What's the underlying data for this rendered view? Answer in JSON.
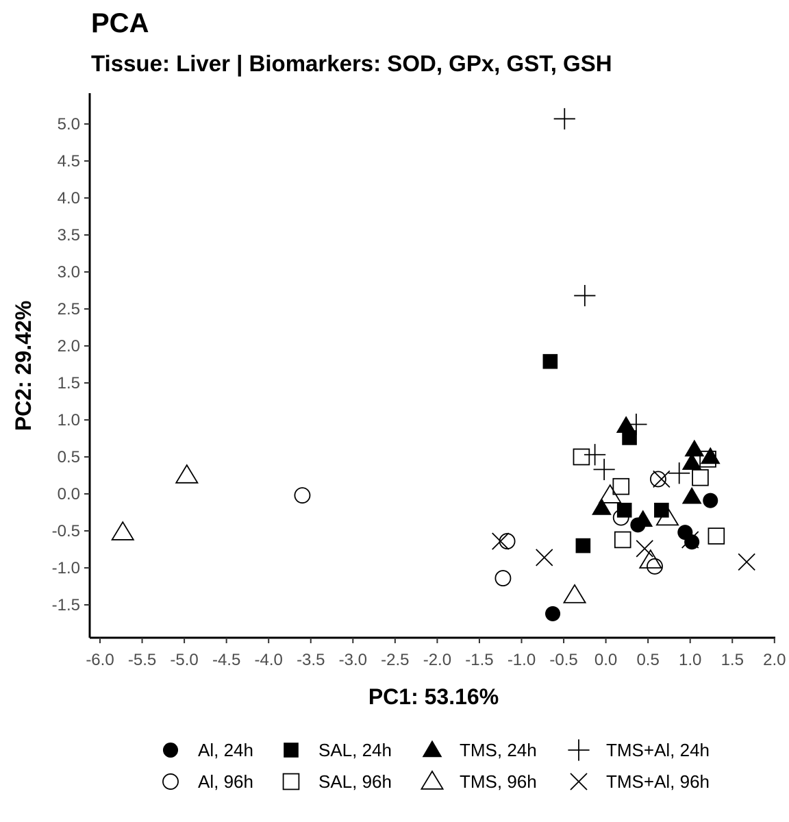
{
  "chart_data": {
    "type": "scatter",
    "title": "PCA",
    "subtitle": "Tissue: Liver | Biomarkers: SOD, GPx, GST, GSH",
    "xlabel": "PC1: 53.16%",
    "ylabel": "PC2: 29.42%",
    "xlim": [
      -6.1,
      2.0
    ],
    "ylim": [
      -1.9,
      5.4
    ],
    "xticks": [
      "-6.0",
      "-5.5",
      "-5.0",
      "-4.5",
      "-4.0",
      "-3.5",
      "-3.0",
      "-2.5",
      "-2.0",
      "-1.5",
      "-1.0",
      "-0.5",
      "0.0",
      "0.5",
      "1.0",
      "1.5",
      "2.0"
    ],
    "yticks": [
      "-1.5",
      "-1.0",
      "-0.5",
      "0.0",
      "0.5",
      "1.0",
      "1.5",
      "2.0",
      "2.5",
      "3.0",
      "3.5",
      "4.0",
      "4.5",
      "5.0"
    ],
    "grid": false,
    "legend_position": "bottom",
    "series": [
      {
        "name": "Al, 24h",
        "marker": "filled-circle",
        "points": [
          [
            1.24,
            -0.09
          ],
          [
            0.38,
            -0.42
          ],
          [
            0.94,
            -0.52
          ],
          [
            1.02,
            -0.65
          ],
          [
            -0.63,
            -1.62
          ]
        ]
      },
      {
        "name": "Al, 96h",
        "marker": "open-circle",
        "points": [
          [
            -3.6,
            -0.02
          ],
          [
            0.62,
            0.2
          ],
          [
            0.18,
            -0.32
          ],
          [
            -1.17,
            -0.64
          ],
          [
            0.58,
            -0.98
          ],
          [
            -1.22,
            -1.14
          ]
        ]
      },
      {
        "name": "SAL, 24h",
        "marker": "filled-square",
        "points": [
          [
            -0.66,
            1.79
          ],
          [
            0.28,
            0.76
          ],
          [
            0.22,
            -0.22
          ],
          [
            0.66,
            -0.22
          ],
          [
            -0.27,
            -0.7
          ]
        ]
      },
      {
        "name": "SAL, 96h",
        "marker": "open-square",
        "points": [
          [
            -0.29,
            0.5
          ],
          [
            1.21,
            0.47
          ],
          [
            1.12,
            0.22
          ],
          [
            0.18,
            0.1
          ],
          [
            1.31,
            -0.57
          ],
          [
            0.2,
            -0.62
          ]
        ]
      },
      {
        "name": "TMS, 24h",
        "marker": "filled-triangle",
        "points": [
          [
            0.24,
            0.92
          ],
          [
            1.05,
            0.6
          ],
          [
            1.24,
            0.5
          ],
          [
            1.02,
            0.42
          ],
          [
            1.02,
            -0.04
          ],
          [
            -0.05,
            -0.19
          ],
          [
            0.44,
            -0.35
          ]
        ]
      },
      {
        "name": "TMS, 96h",
        "marker": "open-triangle",
        "points": [
          [
            -4.97,
            0.25
          ],
          [
            -5.73,
            -0.52
          ],
          [
            0.05,
            -0.02
          ],
          [
            0.73,
            -0.32
          ],
          [
            0.53,
            -0.9
          ],
          [
            -0.37,
            -1.37
          ]
        ]
      },
      {
        "name": "TMS+Al, 24h",
        "marker": "plus",
        "points": [
          [
            -0.49,
            5.07
          ],
          [
            -0.25,
            2.68
          ],
          [
            0.36,
            0.94
          ],
          [
            -0.13,
            0.53
          ],
          [
            -0.02,
            0.33
          ],
          [
            0.87,
            0.28
          ]
        ]
      },
      {
        "name": "TMS+Al, 96h",
        "marker": "cross",
        "points": [
          [
            0.66,
            0.2
          ],
          [
            -1.25,
            -0.64
          ],
          [
            -0.73,
            -0.86
          ],
          [
            0.46,
            -0.74
          ],
          [
            1.0,
            -0.62
          ],
          [
            1.67,
            -0.92
          ]
        ]
      }
    ]
  }
}
